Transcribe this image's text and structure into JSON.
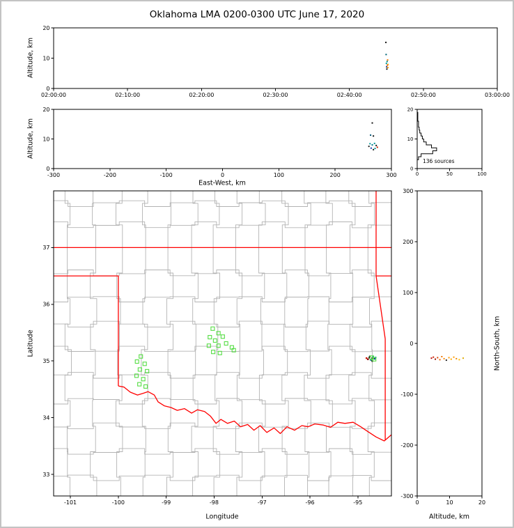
{
  "title": "Oklahoma LMA 0200-0300 UTC June 17, 2020",
  "chart_data": [
    {
      "id": "time_height",
      "type": "scatter",
      "ylabel": "Altitude, km",
      "x_range_seconds": [
        0,
        3600
      ],
      "x_ticks_seconds": [
        0,
        600,
        1200,
        1800,
        2400,
        3000,
        3600
      ],
      "x_tick_labels": [
        "02:00:00",
        "02:10:00",
        "02:20:00",
        "02:30:00",
        "02:40:00",
        "02:50:00",
        "03:00:00"
      ],
      "ylim": [
        0,
        20
      ],
      "y_ticks": [
        0,
        10,
        20
      ],
      "points": [
        {
          "t": 2696,
          "alt": 15.2,
          "color": "#111111"
        },
        {
          "t": 2698,
          "alt": 11.2,
          "color": "#006677"
        },
        {
          "t": 2700,
          "alt": 8.3,
          "color": "#009999"
        },
        {
          "t": 2702,
          "alt": 7.1,
          "color": "#113388"
        },
        {
          "t": 2704,
          "alt": 6.4,
          "color": "#111111"
        },
        {
          "t": 2706,
          "alt": 8.9,
          "color": "#008888"
        },
        {
          "t": 2708,
          "alt": 7.7,
          "color": "#cc3300"
        },
        {
          "t": 2710,
          "alt": 9.4,
          "color": "#ee7700"
        },
        {
          "t": 2712,
          "alt": 6.9,
          "color": "#ff9900"
        },
        {
          "t": 2714,
          "alt": 7.9,
          "color": "#ffaa00"
        }
      ]
    },
    {
      "id": "ew_height",
      "type": "scatter",
      "xlabel": "East-West, km",
      "ylabel": "Altitude, km",
      "xlim": [
        -300,
        300
      ],
      "x_ticks": [
        -300,
        -200,
        -100,
        0,
        100,
        200,
        300
      ],
      "ylim": [
        0,
        20
      ],
      "y_ticks": [
        0,
        10,
        20
      ],
      "points": [
        {
          "ew": 266,
          "alt": 15.4,
          "color": "#111111"
        },
        {
          "ew": 263,
          "alt": 11.3,
          "color": "#005577"
        },
        {
          "ew": 268,
          "alt": 11.0,
          "color": "#111111"
        },
        {
          "ew": 262,
          "alt": 8.4,
          "color": "#009999"
        },
        {
          "ew": 266,
          "alt": 8.0,
          "color": "#007788"
        },
        {
          "ew": 270,
          "alt": 8.5,
          "color": "#009999"
        },
        {
          "ew": 273,
          "alt": 7.8,
          "color": "#111111"
        },
        {
          "ew": 264,
          "alt": 6.9,
          "color": "#1133aa"
        },
        {
          "ew": 268,
          "alt": 6.4,
          "color": "#111111"
        },
        {
          "ew": 271,
          "alt": 6.8,
          "color": "#009999"
        },
        {
          "ew": 275,
          "alt": 7.2,
          "color": "#cc2200"
        },
        {
          "ew": 260,
          "alt": 7.5,
          "color": "#222222"
        }
      ]
    },
    {
      "id": "height_histogram",
      "type": "line",
      "annotation": "136 sources",
      "xlim": [
        0,
        100
      ],
      "x_ticks": [
        0,
        50,
        100
      ],
      "ylim": [
        0,
        20
      ],
      "y_ticks": [
        0,
        10,
        20
      ],
      "bin_km": 1,
      "counts": [
        0,
        0,
        0,
        2,
        6,
        24,
        30,
        22,
        14,
        10,
        8,
        6,
        4,
        3,
        2,
        2,
        1,
        1,
        1,
        0
      ]
    },
    {
      "id": "map",
      "type": "scatter",
      "xlabel": "Longitude",
      "ylabel": "Latitude",
      "xlim": [
        -101.35,
        -94.3
      ],
      "x_ticks": [
        -101,
        -100,
        -99,
        -98,
        -97,
        -96,
        -95
      ],
      "ylim": [
        32.62,
        38.0
      ],
      "y_ticks": [
        33,
        34,
        35,
        36,
        37
      ],
      "county_color": "#b3b3b3",
      "state_border_color": "#ff0000",
      "square_color": "#55dd44",
      "county_grid": {
        "jitter_deg": 0.07,
        "lons": [
          -101.05,
          -100.52,
          -99.98,
          -99.45,
          -98.92,
          -98.4,
          -97.95,
          -97.48,
          -97.0,
          -96.52,
          -96.05,
          -95.6,
          -95.12,
          -94.72
        ],
        "lats": [
          32.95,
          33.4,
          33.85,
          34.3,
          34.75,
          35.2,
          35.65,
          36.1,
          36.55,
          37.4,
          37.78
        ]
      },
      "state_borders": [
        [
          [
            -101.35,
            37
          ],
          [
            -94.3,
            37
          ]
        ],
        [
          [
            -101.35,
            36.5
          ],
          [
            -100,
            36.5
          ],
          [
            -100,
            34.56
          ]
        ],
        [
          [
            -100,
            34.56
          ],
          [
            -99.88,
            34.54
          ],
          [
            -99.75,
            34.45
          ],
          [
            -99.6,
            34.4
          ],
          [
            -99.48,
            34.43
          ],
          [
            -99.38,
            34.46
          ],
          [
            -99.25,
            34.4
          ],
          [
            -99.17,
            34.28
          ],
          [
            -99.04,
            34.21
          ],
          [
            -98.9,
            34.18
          ],
          [
            -98.77,
            34.13
          ],
          [
            -98.62,
            34.16
          ],
          [
            -98.47,
            34.08
          ],
          [
            -98.35,
            34.14
          ],
          [
            -98.2,
            34.11
          ],
          [
            -98.08,
            34.03
          ],
          [
            -97.96,
            33.9
          ],
          [
            -97.86,
            33.97
          ],
          [
            -97.72,
            33.9
          ],
          [
            -97.58,
            33.94
          ],
          [
            -97.45,
            33.84
          ],
          [
            -97.3,
            33.88
          ],
          [
            -97.17,
            33.78
          ],
          [
            -97.04,
            33.86
          ],
          [
            -96.9,
            33.74
          ],
          [
            -96.75,
            33.82
          ],
          [
            -96.62,
            33.72
          ],
          [
            -96.48,
            33.84
          ],
          [
            -96.32,
            33.78
          ],
          [
            -96.17,
            33.86
          ],
          [
            -96.04,
            33.84
          ],
          [
            -95.9,
            33.89
          ],
          [
            -95.72,
            33.87
          ],
          [
            -95.57,
            33.83
          ],
          [
            -95.42,
            33.92
          ],
          [
            -95.27,
            33.9
          ],
          [
            -95.1,
            33.92
          ],
          [
            -94.94,
            33.84
          ],
          [
            -94.8,
            33.76
          ],
          [
            -94.62,
            33.66
          ],
          [
            -94.45,
            33.59
          ],
          [
            -94.3,
            33.7
          ]
        ],
        [
          [
            -94.62,
            38
          ],
          [
            -94.62,
            36.5
          ],
          [
            -94.3,
            36.5
          ]
        ],
        [
          [
            -94.62,
            36.5
          ],
          [
            -94.43,
            35.39
          ],
          [
            -94.43,
            33.6
          ]
        ]
      ],
      "squares": [
        {
          "lon": -99.53,
          "lat": 35.08
        },
        {
          "lon": -99.61,
          "lat": 34.99
        },
        {
          "lon": -99.45,
          "lat": 34.95
        },
        {
          "lon": -99.55,
          "lat": 34.85
        },
        {
          "lon": -99.4,
          "lat": 34.82
        },
        {
          "lon": -99.62,
          "lat": 34.74
        },
        {
          "lon": -99.48,
          "lat": 34.68
        },
        {
          "lon": -99.56,
          "lat": 34.59
        },
        {
          "lon": -99.43,
          "lat": 34.55
        },
        {
          "lon": -98.03,
          "lat": 35.57
        },
        {
          "lon": -97.91,
          "lat": 35.49
        },
        {
          "lon": -98.09,
          "lat": 35.42
        },
        {
          "lon": -97.82,
          "lat": 35.43
        },
        {
          "lon": -97.98,
          "lat": 35.36
        },
        {
          "lon": -98.11,
          "lat": 35.27
        },
        {
          "lon": -97.91,
          "lat": 35.27
        },
        {
          "lon": -97.75,
          "lat": 35.31
        },
        {
          "lon": -97.63,
          "lat": 35.24
        },
        {
          "lon": -98.02,
          "lat": 35.16
        },
        {
          "lon": -97.88,
          "lat": 35.14
        },
        {
          "lon": -97.59,
          "lat": 35.19
        },
        {
          "lon": -94.71,
          "lat": 35.06
        },
        {
          "lon": -94.66,
          "lat": 35.03
        }
      ],
      "dots": [
        {
          "lon": -94.82,
          "lat": 35.05,
          "color": "#cc1100"
        },
        {
          "lon": -94.79,
          "lat": 35.03,
          "color": "#8b0000"
        },
        {
          "lon": -94.76,
          "lat": 35.06,
          "color": "#111111"
        },
        {
          "lon": -94.73,
          "lat": 35.02,
          "color": "#007788"
        },
        {
          "lon": -94.7,
          "lat": 35.05,
          "color": "#111111"
        },
        {
          "lon": -94.68,
          "lat": 35.08,
          "color": "#009999"
        },
        {
          "lon": -94.65,
          "lat": 35.04,
          "color": "#113399"
        },
        {
          "lon": -94.63,
          "lat": 35.06,
          "color": "#009999"
        },
        {
          "lon": -94.75,
          "lat": 35.08,
          "color": "#222222"
        },
        {
          "lon": -94.7,
          "lat": 35.0,
          "color": "#111111"
        }
      ]
    },
    {
      "id": "ns_height",
      "type": "scatter",
      "xlabel": "Altitude, km",
      "ylabel": "North-South, km",
      "xlim": [
        0,
        20
      ],
      "x_ticks": [
        0,
        10,
        20
      ],
      "ylim": [
        -300,
        300
      ],
      "y_ticks": [
        -300,
        -200,
        -100,
        0,
        100,
        200,
        300
      ],
      "points": [
        {
          "alt": 4.4,
          "ns": -29,
          "color": "#bb0000"
        },
        {
          "alt": 5.0,
          "ns": -27,
          "color": "#cc2200"
        },
        {
          "alt": 5.6,
          "ns": -31,
          "color": "#991100"
        },
        {
          "alt": 6.3,
          "ns": -28,
          "color": "#dd4400"
        },
        {
          "alt": 7.0,
          "ns": -32,
          "color": "#ee6600"
        },
        {
          "alt": 7.6,
          "ns": -26,
          "color": "#ee7700"
        },
        {
          "alt": 8.3,
          "ns": -30,
          "color": "#ff8800"
        },
        {
          "alt": 9.0,
          "ns": -33,
          "color": "#222222"
        },
        {
          "alt": 9.8,
          "ns": -28,
          "color": "#ff9900"
        },
        {
          "alt": 10.5,
          "ns": -31,
          "color": "#ffaa00"
        },
        {
          "alt": 11.3,
          "ns": -27,
          "color": "#ff9900"
        },
        {
          "alt": 12.1,
          "ns": -30,
          "color": "#ee8800"
        },
        {
          "alt": 13.0,
          "ns": -32,
          "color": "#ffbb00"
        },
        {
          "alt": 14.2,
          "ns": -29,
          "color": "#ddaa00"
        }
      ]
    }
  ]
}
